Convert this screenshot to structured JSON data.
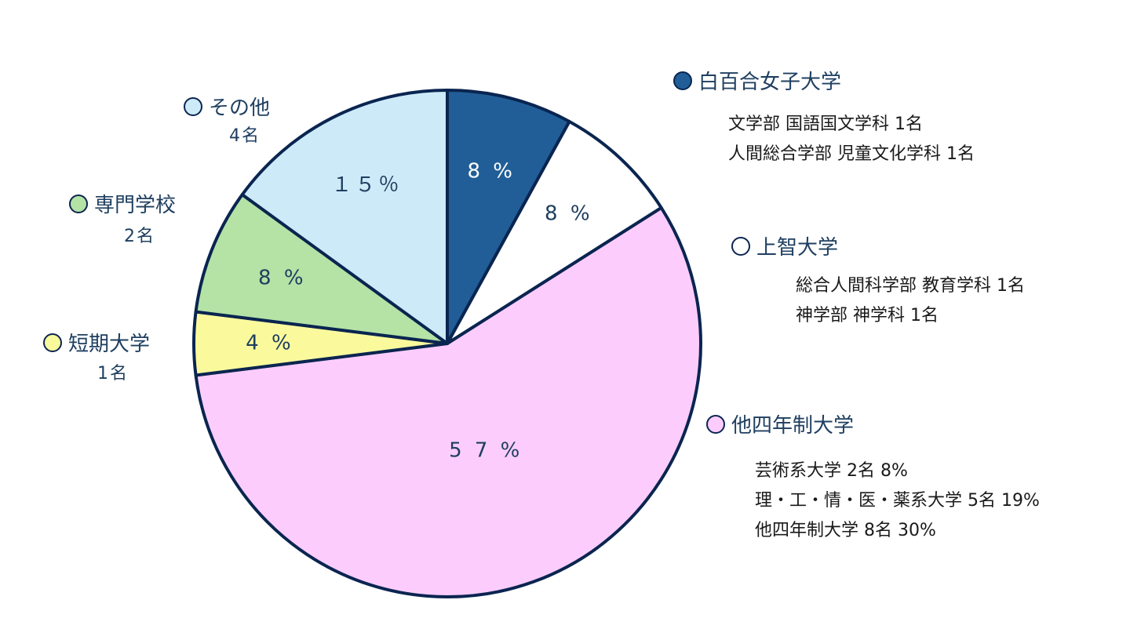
{
  "chart_data": {
    "type": "pie",
    "slices": [
      {
        "label": "白百合女子大学",
        "value": 8,
        "value_label": "8 %",
        "color": "#215e97"
      },
      {
        "label": "上智大学",
        "value": 8,
        "value_label": "8 %",
        "color": "#ffffff"
      },
      {
        "label": "他四年制大学",
        "value": 57,
        "value_label": "5 7 %",
        "color": "#fccdfc"
      },
      {
        "label": "短期大学",
        "value": 4,
        "value_label": "4 %",
        "color": "#fafa9d"
      },
      {
        "label": "専門学校",
        "value": 8,
        "value_label": "8 %",
        "color": "#b5e2a5"
      },
      {
        "label": "その他",
        "value": 15,
        "value_label": "１５％",
        "color": "#cdeaf8"
      }
    ]
  },
  "legend": {
    "shirayuri": {
      "name": "白百合女子大学",
      "color": "#215e97",
      "details": [
        "文学部 国語国文学科 1名",
        "人間総合学部 児童文化学科 1名"
      ]
    },
    "sophia": {
      "name": "上智大学",
      "color": "#ffffff",
      "details": [
        "総合人間科学部 教育学科 1名",
        "神学部 神学科 1名"
      ]
    },
    "other4yr": {
      "name": "他四年制大学",
      "color": "#fccdfc",
      "details": [
        "芸術系大学 2名 8%",
        "理・工・情・医・薬系大学 5名 19%",
        "他四年制大学 8名 30%"
      ]
    },
    "junior": {
      "name": "短期大学",
      "count": "1名",
      "color": "#fafa9d"
    },
    "vocational": {
      "name": "専門学校",
      "count": "2名",
      "color": "#b5e2a5"
    },
    "others": {
      "name": "その他",
      "count": "4名",
      "color": "#cdeaf8"
    }
  }
}
